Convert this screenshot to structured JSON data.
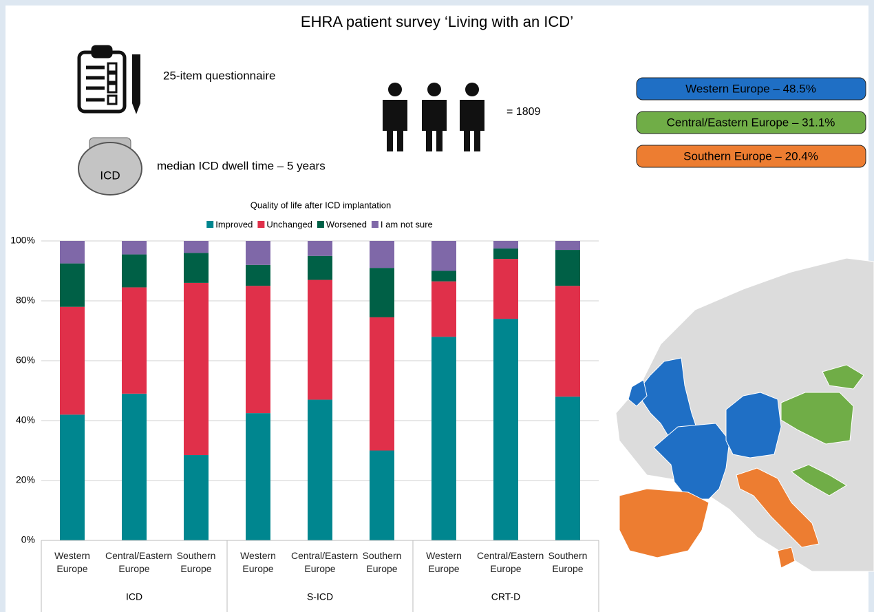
{
  "title": "EHRA patient survey ‘Living with an ICD’",
  "facts": {
    "questionnaire": "25-item questionnaire",
    "device_label": "ICD",
    "dwell_time": "median ICD dwell time – 5 years",
    "participants": "= 1809"
  },
  "regions": [
    {
      "label": "Western Europe – 48.5%",
      "color": "#1f6fc5"
    },
    {
      "label": "Central/Eastern Europe – 31.1%",
      "color": "#70ad47"
    },
    {
      "label": "Southern Europe – 20.4%",
      "color": "#ed7d31"
    }
  ],
  "chart_data": {
    "type": "bar",
    "stacked": true,
    "title": "Quality of life after ICD implantation",
    "categories": [
      "Western Europe",
      "Central/Eastern Europe",
      "Southern Europe",
      "Western Europe",
      "Central/Eastern Europe",
      "Southern Europe",
      "Western Europe",
      "Central/Eastern Europe",
      "Southern Europe"
    ],
    "groups": [
      "ICD",
      "S-ICD",
      "CRT-D"
    ],
    "series": [
      {
        "name": "Improved",
        "color": "#00868f",
        "values": [
          42,
          49,
          28.5,
          42.5,
          47,
          30,
          68,
          74,
          48
        ]
      },
      {
        "name": "Unchanged",
        "color": "#e0304a",
        "values": [
          36,
          35.5,
          57.5,
          42.5,
          40,
          44.5,
          18.5,
          20,
          37
        ]
      },
      {
        "name": "Worsened",
        "color": "#006046",
        "values": [
          14.5,
          11,
          10,
          7,
          8,
          16.5,
          3.5,
          3.5,
          12
        ]
      },
      {
        "name": "I am not sure",
        "color": "#7f68a8",
        "values": [
          7.5,
          4.5,
          4,
          8,
          5,
          9,
          10,
          2.5,
          3
        ]
      }
    ],
    "ylim": [
      0,
      100
    ],
    "yticks": [
      {
        "value": 0,
        "label": "0%"
      },
      {
        "value": 20,
        "label": "20%"
      },
      {
        "value": 40,
        "label": "40%"
      },
      {
        "value": 60,
        "label": "60%"
      },
      {
        "value": 80,
        "label": "80%"
      },
      {
        "value": 100,
        "label": "100%"
      }
    ],
    "grid": true,
    "legend": "top"
  }
}
